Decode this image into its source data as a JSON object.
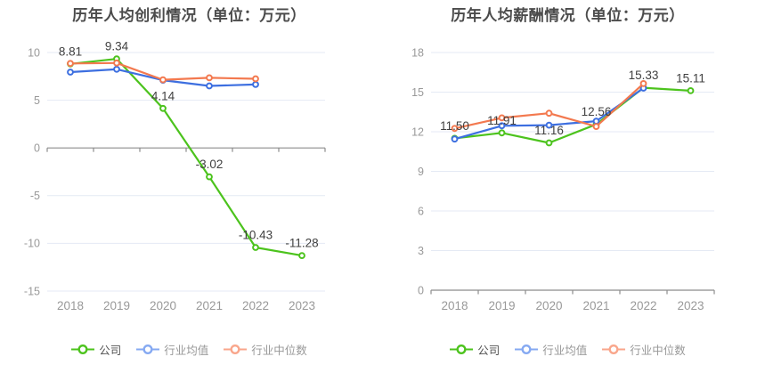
{
  "chart_data": [
    {
      "type": "line",
      "title": "历年人均创利情况（单位：万元）",
      "categories": [
        "2018",
        "2019",
        "2020",
        "2021",
        "2022",
        "2023"
      ],
      "ylim": [
        -15,
        10
      ],
      "yticks": [
        10,
        5,
        0,
        -5,
        -10,
        -15
      ],
      "grid": true,
      "legend_position": "bottom",
      "series": [
        {
          "name": "公司",
          "color": "#4cc31d",
          "values": [
            8.81,
            9.34,
            4.14,
            -3.02,
            -10.43,
            -11.28
          ],
          "data_labels": [
            "8.81",
            "9.34",
            "4.14",
            "-3.02",
            "-10.43",
            "-11.28"
          ]
        },
        {
          "name": "行业均值",
          "color": "#3d6fe0",
          "values": [
            7.95,
            8.25,
            7.1,
            6.5,
            6.65,
            null
          ]
        },
        {
          "name": "行业中位数",
          "color": "#f3794f",
          "values": [
            8.85,
            8.9,
            7.15,
            7.35,
            7.25,
            null
          ]
        }
      ]
    },
    {
      "type": "line",
      "title": "历年人均薪酬情况（单位：万元）",
      "categories": [
        "2018",
        "2019",
        "2020",
        "2021",
        "2022",
        "2023"
      ],
      "ylim": [
        0,
        18
      ],
      "yticks": [
        18,
        15,
        12,
        9,
        6,
        3,
        0
      ],
      "grid": true,
      "legend_position": "bottom",
      "series": [
        {
          "name": "公司",
          "color": "#4cc31d",
          "values": [
            11.5,
            11.91,
            11.16,
            12.56,
            15.33,
            15.11
          ],
          "data_labels": [
            "11.50",
            "11.91",
            "11.16",
            "12.56",
            "15.33",
            "15.11"
          ]
        },
        {
          "name": "行业均值",
          "color": "#3d6fe0",
          "values": [
            11.45,
            12.45,
            12.5,
            12.8,
            15.3,
            null
          ]
        },
        {
          "name": "行业中位数",
          "color": "#f3794f",
          "values": [
            12.25,
            13.05,
            13.4,
            12.4,
            15.65,
            null
          ]
        }
      ]
    }
  ],
  "legend": {
    "items": [
      {
        "label": "公司",
        "icon_color": "#4cc31d",
        "label_color": "#555555"
      },
      {
        "label": "行业均值",
        "icon_color": "#85a9f2",
        "label_color": "#989898"
      },
      {
        "label": "行业中位数",
        "icon_color": "#f9a68b",
        "label_color": "#989898"
      }
    ]
  },
  "axis_style": {
    "tick_label_color": "#999999",
    "grid_color": "#e4eaf4",
    "axis_color": "#8c8c8c",
    "data_label_color": "#404040"
  }
}
